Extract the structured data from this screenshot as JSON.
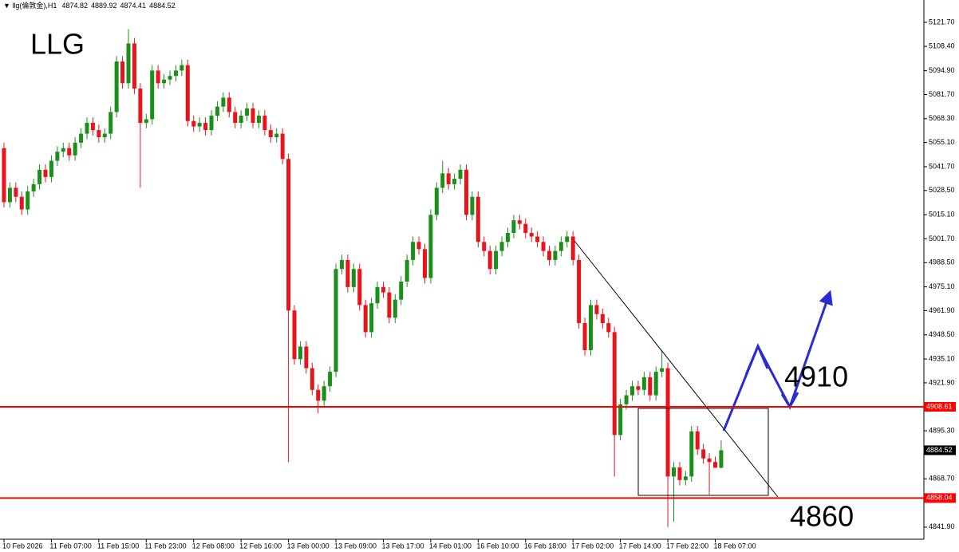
{
  "chart_data": {
    "type": "candlestick",
    "symbol": "llg(倫敦金),H1",
    "title": "LLG",
    "annotations": [
      "4910",
      "4860"
    ],
    "up_color": "#1a8f1a",
    "down_color": "#e8141b",
    "xlim": [
      -0.67,
      155.2
    ],
    "ylim": [
      4835.2,
      5134.1
    ],
    "xticks": [
      {
        "value": 0,
        "label": "10 Feb 2026"
      },
      {
        "value": 8,
        "label": "11 Feb 07:00"
      },
      {
        "value": 16,
        "label": "11 Feb 15:00"
      },
      {
        "value": 24,
        "label": "11 Feb 23:00"
      },
      {
        "value": 32,
        "label": "12 Feb 08:00"
      },
      {
        "value": 40,
        "label": "12 Feb 16:00"
      },
      {
        "value": 48,
        "label": "13 Feb 00:00"
      },
      {
        "value": 56,
        "label": "13 Feb 09:00"
      },
      {
        "value": 64,
        "label": "13 Feb 17:00"
      },
      {
        "value": 72,
        "label": "14 Feb 01:00"
      },
      {
        "value": 80,
        "label": "16 Feb 10:00"
      },
      {
        "value": 88,
        "label": "16 Feb 18:00"
      },
      {
        "value": 96,
        "label": "17 Feb 02:00"
      },
      {
        "value": 104,
        "label": "17 Feb 14:00"
      },
      {
        "value": 112,
        "label": "17 Feb 22:00"
      },
      {
        "value": 120,
        "label": "18 Feb 07:00"
      }
    ],
    "yticks": [
      {
        "value": 5121.7,
        "label": "5121.70"
      },
      {
        "value": 5108.4,
        "label": "5108.40"
      },
      {
        "value": 5094.9,
        "label": "5094.90"
      },
      {
        "value": 5081.7,
        "label": "5081.70"
      },
      {
        "value": 5068.3,
        "label": "5068.30"
      },
      {
        "value": 5055.1,
        "label": "5055.10"
      },
      {
        "value": 5041.7,
        "label": "5041.70"
      },
      {
        "value": 5028.5,
        "label": "5028.50"
      },
      {
        "value": 5015.1,
        "label": "5015.10"
      },
      {
        "value": 5001.7,
        "label": "5001.70"
      },
      {
        "value": 4988.5,
        "label": "4988.50"
      },
      {
        "value": 4975.1,
        "label": "4975.10"
      },
      {
        "value": 4961.9,
        "label": "4961.90"
      },
      {
        "value": 4948.5,
        "label": "4948.50"
      },
      {
        "value": 4935.1,
        "label": "4935.10"
      },
      {
        "value": 4921.9,
        "label": "4921.90"
      },
      {
        "value": 4895.3,
        "label": "4895.30"
      },
      {
        "value": 4868.7,
        "label": "4868.70"
      },
      {
        "value": 4841.9,
        "label": "4841.90"
      }
    ],
    "hlines": [
      {
        "value": 4908.61,
        "color": "#ff0000"
      },
      {
        "value": 4858.04,
        "color": "#ff0000"
      }
    ],
    "open": [
      5052,
      5022,
      5030,
      5025,
      5018,
      5028,
      5032,
      5040,
      5036,
      5045,
      5050,
      5052,
      5048,
      5055,
      5060,
      5066,
      5062,
      5058,
      5060,
      5072,
      5100,
      5088,
      5110,
      5085,
      5066,
      5068,
      5095,
      5088,
      5090,
      5092,
      5095,
      5098,
      5067,
      5064,
      5066,
      5062,
      5070,
      5075,
      5080,
      5072,
      5066,
      5070,
      5074,
      5066,
      5070,
      5062,
      5058,
      5060,
      5046,
      4962,
      4935,
      4942,
      4930,
      4918,
      4912,
      4920,
      4928,
      4985,
      4990,
      4975,
      4985,
      4965,
      4950,
      4966,
      4975,
      4972,
      4958,
      4968,
      4978,
      4990,
      5000,
      4996,
      4980,
      5015,
      5030,
      5038,
      5032,
      5035,
      5040,
      5015,
      5025,
      5000,
      4995,
      4985,
      4995,
      5000,
      5005,
      5012,
      5010,
      5005,
      5003,
      5000,
      4995,
      4990,
      4995,
      5000,
      5003,
      4990,
      4955,
      4940,
      4965,
      4960,
      4955,
      4950,
      4893,
      4910,
      4915,
      4920,
      4918,
      4925,
      4915,
      4928,
      4930,
      4870,
      4875,
      4868,
      4870,
      4895,
      4885,
      4880,
      4878,
      4874.82
    ],
    "high": [
      5055,
      5033,
      5033,
      5028,
      5031,
      5035,
      5043,
      5043,
      5048,
      5053,
      5055,
      5055,
      5058,
      5063,
      5069,
      5069,
      5065,
      5063,
      5075,
      5103,
      5103,
      5118,
      5113,
      5088,
      5071,
      5098,
      5098,
      5093,
      5095,
      5098,
      5101,
      5101,
      5070,
      5069,
      5069,
      5073,
      5078,
      5083,
      5083,
      5075,
      5073,
      5077,
      5077,
      5073,
      5073,
      5065,
      5063,
      5063,
      5049,
      4965,
      4945,
      4945,
      4933,
      4921,
      4923,
      4931,
      4988,
      4993,
      4993,
      4988,
      4988,
      4968,
      4969,
      4978,
      4978,
      4975,
      4971,
      4981,
      4993,
      5003,
      5003,
      4999,
      5018,
      5033,
      5045,
      5041,
      5038,
      5043,
      5043,
      5028,
      5028,
      5003,
      4998,
      4998,
      5003,
      5008,
      5015,
      5015,
      5013,
      5008,
      5006,
      5003,
      4998,
      4998,
      5003,
      5006,
      5006,
      4993,
      4958,
      4968,
      4968,
      4963,
      4958,
      4953,
      4913,
      4918,
      4923,
      4923,
      4928,
      4928,
      4931,
      4940,
      4933,
      4878,
      4878,
      4873,
      4898,
      4898,
      4888,
      4883,
      4881,
      4889.92
    ],
    "low": [
      5019,
      5019,
      5022,
      5015,
      5015,
      5025,
      5029,
      5033,
      5033,
      5042,
      5047,
      5045,
      5045,
      5052,
      5057,
      5059,
      5055,
      5055,
      5057,
      5069,
      5085,
      5085,
      5082,
      5030,
      5063,
      5065,
      5085,
      5085,
      5087,
      5089,
      5092,
      5064,
      5061,
      5061,
      5059,
      5059,
      5067,
      5072,
      5069,
      5063,
      5063,
      5067,
      5063,
      5063,
      5059,
      5055,
      5055,
      5043,
      4878,
      4932,
      4932,
      4927,
      4915,
      4905,
      4909,
      4917,
      4925,
      4982,
      4972,
      4972,
      4962,
      4947,
      4947,
      4963,
      4969,
      4955,
      4955,
      4965,
      4975,
      4987,
      4993,
      4977,
      4977,
      5012,
      5027,
      5029,
      5029,
      5032,
      5012,
      5012,
      4997,
      4992,
      4982,
      4982,
      4992,
      4997,
      5002,
      5007,
      5002,
      5000,
      4997,
      4992,
      4987,
      4987,
      4992,
      4997,
      4987,
      4952,
      4937,
      4937,
      4957,
      4952,
      4947,
      4870,
      4890,
      4907,
      4912,
      4915,
      4915,
      4912,
      4912,
      4925,
      4842,
      4845,
      4865,
      4865,
      4867,
      4882,
      4877,
      4860,
      4875,
      4874.41
    ],
    "close": [
      5022,
      5030,
      5025,
      5018,
      5028,
      5032,
      5040,
      5036,
      5045,
      5050,
      5052,
      5048,
      5055,
      5060,
      5066,
      5062,
      5058,
      5060,
      5072,
      5100,
      5088,
      5110,
      5085,
      5066,
      5068,
      5095,
      5088,
      5090,
      5092,
      5095,
      5098,
      5067,
      5064,
      5066,
      5062,
      5070,
      5075,
      5080,
      5072,
      5066,
      5070,
      5074,
      5066,
      5070,
      5062,
      5058,
      5060,
      5046,
      4962,
      4935,
      4942,
      4930,
      4918,
      4912,
      4920,
      4928,
      4985,
      4990,
      4975,
      4985,
      4965,
      4950,
      4966,
      4975,
      4972,
      4958,
      4968,
      4978,
      4990,
      5000,
      4996,
      4980,
      5015,
      5030,
      5038,
      5032,
      5035,
      5040,
      5015,
      5025,
      5000,
      4995,
      4985,
      4995,
      5000,
      5005,
      5012,
      5010,
      5005,
      5003,
      5000,
      4995,
      4990,
      4995,
      5000,
      5003,
      4990,
      4955,
      4940,
      4965,
      4960,
      4955,
      4950,
      4893,
      4910,
      4915,
      4920,
      4918,
      4925,
      4915,
      4928,
      4930,
      4870,
      4875,
      4868,
      4870,
      4895,
      4885,
      4880,
      4878,
      4874.82,
      4884.52
    ]
  }
}
